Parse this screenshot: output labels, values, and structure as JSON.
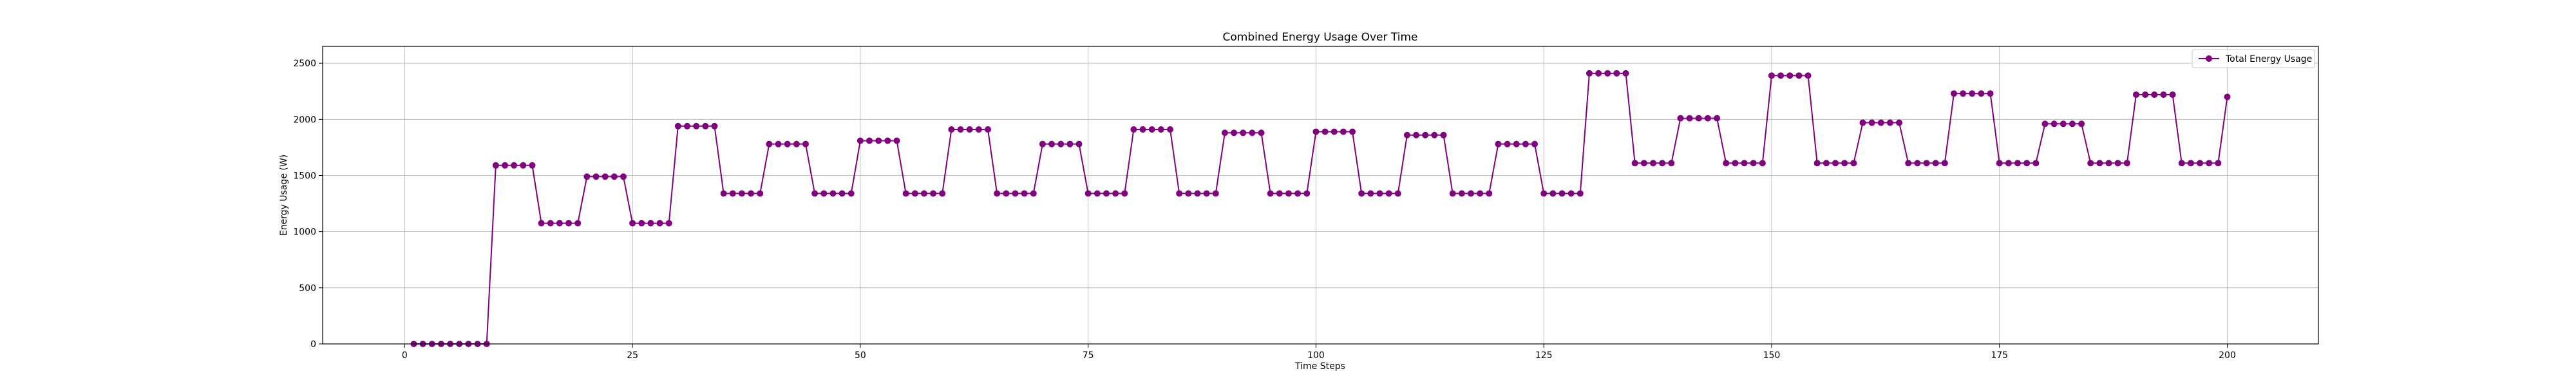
{
  "chart_data": {
    "type": "line",
    "title": "Combined Energy Usage Over Time",
    "xlabel": "Time Steps",
    "ylabel": "Energy Usage (W)",
    "xlim": [
      -9,
      210
    ],
    "ylim": [
      0,
      2650
    ],
    "xticks": [
      0,
      25,
      50,
      75,
      100,
      125,
      150,
      175,
      200
    ],
    "yticks": [
      0,
      500,
      1000,
      1500,
      2000,
      2500
    ],
    "grid": true,
    "legend_position": "upper right",
    "series": [
      {
        "name": "Total Energy Usage",
        "color": "#800080",
        "marker": "circle",
        "x": [
          1,
          2,
          3,
          4,
          5,
          6,
          7,
          8,
          9,
          10,
          11,
          12,
          13,
          14,
          15,
          16,
          17,
          18,
          19,
          20,
          21,
          22,
          23,
          24,
          25,
          26,
          27,
          28,
          29,
          30,
          31,
          32,
          33,
          34,
          35,
          36,
          37,
          38,
          39,
          40,
          41,
          42,
          43,
          44,
          45,
          46,
          47,
          48,
          49,
          50,
          51,
          52,
          53,
          54,
          55,
          56,
          57,
          58,
          59,
          60,
          61,
          62,
          63,
          64,
          65,
          66,
          67,
          68,
          69,
          70,
          71,
          72,
          73,
          74,
          75,
          76,
          77,
          78,
          79,
          80,
          81,
          82,
          83,
          84,
          85,
          86,
          87,
          88,
          89,
          90,
          91,
          92,
          93,
          94,
          95,
          96,
          97,
          98,
          99,
          100,
          101,
          102,
          103,
          104,
          105,
          106,
          107,
          108,
          109,
          110,
          111,
          112,
          113,
          114,
          115,
          116,
          117,
          118,
          119,
          120,
          121,
          122,
          123,
          124,
          125,
          126,
          127,
          128,
          129,
          130,
          131,
          132,
          133,
          134,
          135,
          136,
          137,
          138,
          139,
          140,
          141,
          142,
          143,
          144,
          145,
          146,
          147,
          148,
          149,
          150,
          151,
          152,
          153,
          154,
          155,
          156,
          157,
          158,
          159,
          160,
          161,
          162,
          163,
          164,
          165,
          166,
          167,
          168,
          169,
          170,
          171,
          172,
          173,
          174,
          175,
          176,
          177,
          178,
          179,
          180,
          181,
          182,
          183,
          184,
          185,
          186,
          187,
          188,
          189,
          190,
          191,
          192,
          193,
          194,
          195,
          196,
          197,
          198,
          199,
          200
        ],
        "y": [
          0,
          0,
          0,
          0,
          0,
          0,
          0,
          0,
          0,
          1590,
          1590,
          1590,
          1590,
          1590,
          1075,
          1075,
          1075,
          1075,
          1075,
          1490,
          1490,
          1490,
          1490,
          1490,
          1075,
          1075,
          1075,
          1075,
          1075,
          1940,
          1940,
          1940,
          1940,
          1940,
          1340,
          1340,
          1340,
          1340,
          1340,
          1780,
          1780,
          1780,
          1780,
          1780,
          1340,
          1340,
          1340,
          1340,
          1340,
          1810,
          1810,
          1810,
          1810,
          1810,
          1340,
          1340,
          1340,
          1340,
          1340,
          1910,
          1910,
          1910,
          1910,
          1910,
          1340,
          1340,
          1340,
          1340,
          1340,
          1780,
          1780,
          1780,
          1780,
          1780,
          1340,
          1340,
          1340,
          1340,
          1340,
          1910,
          1910,
          1910,
          1910,
          1910,
          1340,
          1340,
          1340,
          1340,
          1340,
          1880,
          1880,
          1880,
          1880,
          1880,
          1340,
          1340,
          1340,
          1340,
          1340,
          1890,
          1890,
          1890,
          1890,
          1890,
          1340,
          1340,
          1340,
          1340,
          1340,
          1860,
          1860,
          1860,
          1860,
          1860,
          1340,
          1340,
          1340,
          1340,
          1340,
          1780,
          1780,
          1780,
          1780,
          1780,
          1340,
          1340,
          1340,
          1340,
          1340,
          2410,
          2410,
          2410,
          2410,
          2410,
          1610,
          1610,
          1610,
          1610,
          1610,
          2010,
          2010,
          2010,
          2010,
          2010,
          1610,
          1610,
          1610,
          1610,
          1610,
          2390,
          2390,
          2390,
          2390,
          2390,
          1610,
          1610,
          1610,
          1610,
          1610,
          1970,
          1970,
          1970,
          1970,
          1970,
          1610,
          1610,
          1610,
          1610,
          1610,
          2230,
          2230,
          2230,
          2230,
          2230,
          1610,
          1610,
          1610,
          1610,
          1610,
          1960,
          1960,
          1960,
          1960,
          1960,
          1610,
          1610,
          1610,
          1610,
          1610,
          2220,
          2220,
          2220,
          2220,
          2220,
          1610,
          1610,
          1610,
          1610,
          1610,
          2200
        ]
      }
    ]
  }
}
